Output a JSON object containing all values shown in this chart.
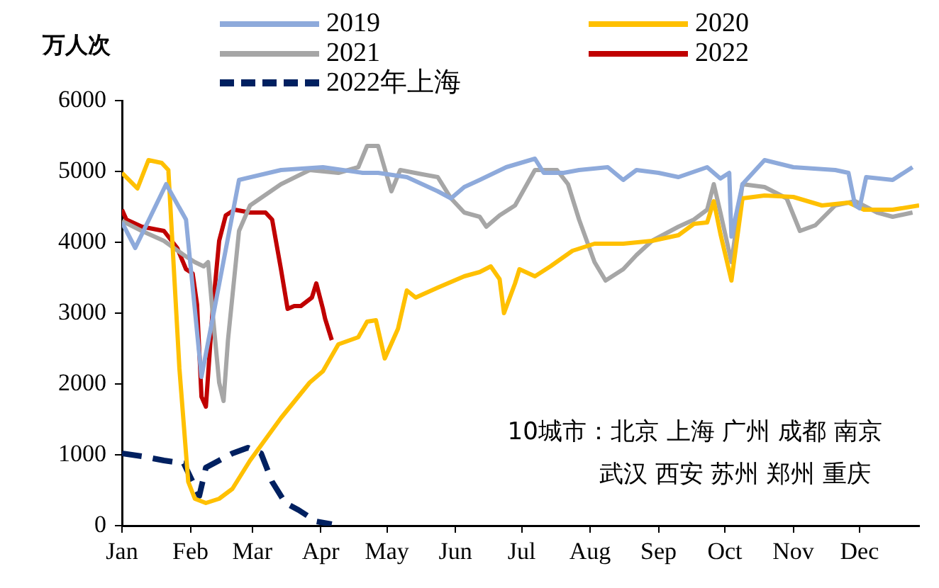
{
  "chart_data": {
    "type": "line",
    "ylabel": "万人次",
    "annotations": [
      "10城市：北京 上海 广州 成都 南京",
      "武汉 西安 苏州 郑州 重庆"
    ],
    "xlim": [
      "--01-01",
      "--12-28"
    ],
    "xticks": [
      {
        "value": "--01-01",
        "label": "Jan"
      },
      {
        "value": "--02-01",
        "label": "Feb"
      },
      {
        "value": "--03-01",
        "label": "Mar"
      },
      {
        "value": "--04-01",
        "label": "Apr"
      },
      {
        "value": "--05-01",
        "label": "May"
      },
      {
        "value": "--06-01",
        "label": "Jun"
      },
      {
        "value": "--07-01",
        "label": "Jul"
      },
      {
        "value": "--08-01",
        "label": "Aug"
      },
      {
        "value": "--09-01",
        "label": "Sep"
      },
      {
        "value": "--10-01",
        "label": "Oct"
      },
      {
        "value": "--11-01",
        "label": "Nov"
      },
      {
        "value": "--12-01",
        "label": "Dec"
      }
    ],
    "ylim": [
      0,
      6000
    ],
    "yticks": [
      0,
      1000,
      2000,
      3000,
      4000,
      5000,
      6000
    ],
    "grid": false,
    "legend": "top",
    "marker": "none",
    "series": [
      {
        "name": "2019",
        "color": "#8eaadb",
        "x": [
          "--01-01",
          "--01-07",
          "--01-21",
          "--01-30",
          "--02-06",
          "--02-23",
          "--03-14",
          "--04-02",
          "--04-20",
          "--04-27",
          "--05-10",
          "--05-24",
          "--05-30",
          "--06-05",
          "--06-12",
          "--06-24",
          "--07-07",
          "--07-11",
          "--07-20",
          "--07-27",
          "--08-09",
          "--08-16",
          "--08-22",
          "--09-01",
          "--09-10",
          "--09-23",
          "--09-29",
          "--10-03",
          "--10-04",
          "--10-09",
          "--10-19",
          "--11-01",
          "--11-20",
          "--11-26",
          "--11-29",
          "--12-01",
          "--12-04",
          "--12-16",
          "--12-25"
        ],
        "values": [
          4280,
          3920,
          4820,
          4320,
          2100,
          4880,
          5020,
          5060,
          4980,
          4980,
          4920,
          4720,
          4620,
          4780,
          4880,
          5060,
          5180,
          4980,
          4980,
          5020,
          5060,
          4880,
          5020,
          4980,
          4920,
          5060,
          4900,
          4980,
          4080,
          4820,
          5160,
          5060,
          5020,
          4980,
          4520,
          4480,
          4920,
          4880,
          5060
        ]
      },
      {
        "name": "2020",
        "color": "#ffc000",
        "x": [
          "--01-01",
          "--01-08",
          "--01-13",
          "--01-19",
          "--01-22",
          "--01-27",
          "--01-31",
          "--02-03",
          "--02-08",
          "--02-14",
          "--02-20",
          "--02-28",
          "--03-14",
          "--03-27",
          "--04-02",
          "--04-09",
          "--04-18",
          "--04-22",
          "--04-26",
          "--04-30",
          "--05-06",
          "--05-10",
          "--05-14",
          "--05-24",
          "--06-05",
          "--06-12",
          "--06-17",
          "--06-21",
          "--06-23",
          "--06-28",
          "--06-30",
          "--07-07",
          "--07-14",
          "--07-24",
          "--08-03",
          "--08-16",
          "--08-29",
          "--09-10",
          "--09-17",
          "--09-23",
          "--09-26",
          "--09-29",
          "--10-04",
          "--10-09",
          "--10-19",
          "--11-01",
          "--11-14",
          "--11-26",
          "--12-03",
          "--12-16",
          "--12-28"
        ],
        "values": [
          4980,
          4760,
          5160,
          5120,
          5020,
          2220,
          620,
          380,
          320,
          380,
          520,
          920,
          1520,
          2020,
          2180,
          2560,
          2660,
          2880,
          2900,
          2360,
          2780,
          3320,
          3220,
          3360,
          3520,
          3580,
          3660,
          3480,
          3000,
          3420,
          3620,
          3520,
          3660,
          3880,
          3980,
          3980,
          4020,
          4100,
          4260,
          4280,
          4580,
          4120,
          3460,
          4620,
          4660,
          4640,
          4520,
          4560,
          4460,
          4460,
          4520
        ]
      },
      {
        "name": "2021",
        "color": "#a6a6a6",
        "x": [
          "--01-01",
          "--01-10",
          "--01-20",
          "--01-29",
          "--02-03",
          "--02-07",
          "--02-09",
          "--02-11",
          "--02-14",
          "--02-16",
          "--02-18",
          "--02-23",
          "--02-28",
          "--03-14",
          "--03-27",
          "--04-09",
          "--04-18",
          "--04-22",
          "--04-27",
          "--05-03",
          "--05-07",
          "--05-17",
          "--05-24",
          "--05-30",
          "--06-05",
          "--06-12",
          "--06-15",
          "--06-21",
          "--06-28",
          "--07-07",
          "--07-17",
          "--07-22",
          "--07-27",
          "--08-03",
          "--08-08",
          "--08-16",
          "--08-22",
          "--08-29",
          "--09-04",
          "--09-10",
          "--09-17",
          "--09-23",
          "--09-26",
          "--09-29",
          "--10-04",
          "--10-09",
          "--10-19",
          "--10-29",
          "--11-04",
          "--11-11",
          "--11-20",
          "--11-29",
          "--12-09",
          "--12-16",
          "--12-25"
        ],
        "values": [
          4300,
          4160,
          4020,
          3820,
          3720,
          3660,
          3720,
          3020,
          2020,
          1760,
          2620,
          4160,
          4520,
          4820,
          5020,
          4980,
          5060,
          5360,
          5360,
          4720,
          5020,
          4960,
          4920,
          4620,
          4420,
          4360,
          4220,
          4380,
          4520,
          5020,
          5020,
          4820,
          4320,
          3720,
          3460,
          3620,
          3820,
          4020,
          4120,
          4220,
          4320,
          4460,
          4820,
          4420,
          3720,
          4820,
          4780,
          4620,
          4160,
          4240,
          4520,
          4580,
          4420,
          4360,
          4420
        ]
      },
      {
        "name": "2022",
        "color": "#c00000",
        "x": [
          "--01-01",
          "--01-03",
          "--01-10",
          "--01-20",
          "--01-26",
          "--01-30",
          "--02-02",
          "--02-04",
          "--02-06",
          "--02-08",
          "--02-11",
          "--02-14",
          "--02-17",
          "--02-21",
          "--02-28",
          "--03-07",
          "--03-10",
          "--03-14",
          "--03-17",
          "--03-20",
          "--03-23",
          "--03-28",
          "--03-30",
          "--04-02",
          "--04-03",
          "--04-06"
        ],
        "values": [
          4460,
          4320,
          4220,
          4160,
          3920,
          3620,
          3560,
          3120,
          1820,
          1680,
          3020,
          4020,
          4380,
          4460,
          4420,
          4420,
          4320,
          3620,
          3060,
          3100,
          3100,
          3220,
          3420,
          3060,
          2920,
          2620
        ]
      },
      {
        "name": "2022年上海",
        "color": "#002060",
        "line_style": "dashed",
        "x": [
          "--01-01",
          "--01-10",
          "--01-20",
          "--01-29",
          "--02-02",
          "--02-05",
          "--02-08",
          "--02-14",
          "--02-20",
          "--02-27",
          "--03-05",
          "--03-10",
          "--03-16",
          "--03-22",
          "--03-30",
          "--04-06"
        ],
        "values": [
          1020,
          980,
          920,
          880,
          620,
          420,
          820,
          920,
          1020,
          1100,
          1020,
          620,
          320,
          220,
          60,
          20
        ]
      }
    ]
  }
}
